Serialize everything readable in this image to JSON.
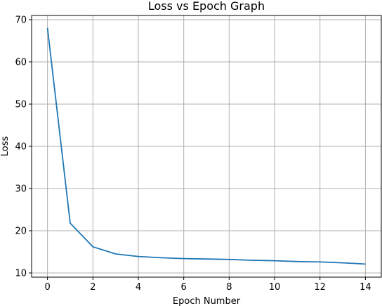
{
  "chart_data": {
    "type": "line",
    "title": "Loss vs Epoch Graph",
    "xlabel": "Epoch Number",
    "ylabel": "Loss",
    "xlim": [
      -0.7,
      14.7
    ],
    "ylim": [
      9.0,
      71.0
    ],
    "xticks": [
      0,
      2,
      4,
      6,
      8,
      10,
      12,
      14
    ],
    "yticks": [
      10,
      20,
      30,
      40,
      50,
      60,
      70
    ],
    "grid": true,
    "series": [
      {
        "color": "#1f77b4",
        "x": [
          0,
          1,
          2,
          3,
          4,
          5,
          6,
          7,
          8,
          9,
          10,
          11,
          12,
          13,
          14
        ],
        "y": [
          68.0,
          21.8,
          16.2,
          14.5,
          13.9,
          13.6,
          13.4,
          13.3,
          13.2,
          13.0,
          12.9,
          12.7,
          12.6,
          12.4,
          12.1
        ]
      }
    ]
  }
}
